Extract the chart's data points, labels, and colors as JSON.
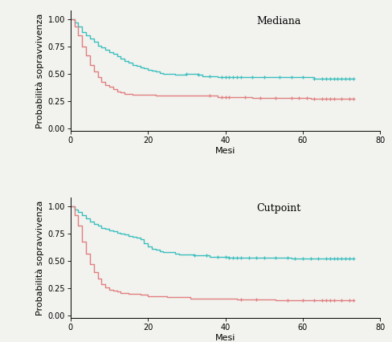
{
  "teal_color": "#3bbfbf",
  "red_color": "#e08080",
  "background_color": "#f2f2ee",
  "ylabel": "Probabilità sopravvivenza",
  "xlabel": "Mesi",
  "xlim": [
    0,
    80
  ],
  "ylim": [
    -0.02,
    1.08
  ],
  "yticks": [
    0.0,
    0.25,
    0.5,
    0.75,
    1.0
  ],
  "xticks": [
    0,
    20,
    40,
    60,
    80
  ],
  "panel1_label": "Mediana",
  "panel1_teal_steps": [
    [
      0,
      1.0
    ],
    [
      1,
      0.97
    ],
    [
      2,
      0.93
    ],
    [
      3,
      0.88
    ],
    [
      4,
      0.85
    ],
    [
      5,
      0.82
    ],
    [
      6,
      0.79
    ],
    [
      7,
      0.76
    ],
    [
      8,
      0.74
    ],
    [
      9,
      0.72
    ],
    [
      10,
      0.7
    ],
    [
      11,
      0.68
    ],
    [
      12,
      0.66
    ],
    [
      13,
      0.64
    ],
    [
      14,
      0.62
    ],
    [
      15,
      0.6
    ],
    [
      16,
      0.58
    ],
    [
      17,
      0.57
    ],
    [
      18,
      0.56
    ],
    [
      19,
      0.55
    ],
    [
      20,
      0.54
    ],
    [
      21,
      0.53
    ],
    [
      22,
      0.52
    ],
    [
      23,
      0.51
    ],
    [
      24,
      0.5
    ],
    [
      25,
      0.5
    ],
    [
      26,
      0.5
    ],
    [
      27,
      0.49
    ],
    [
      28,
      0.49
    ],
    [
      29,
      0.49
    ],
    [
      30,
      0.5
    ],
    [
      31,
      0.5
    ],
    [
      32,
      0.5
    ],
    [
      33,
      0.49
    ],
    [
      34,
      0.48
    ],
    [
      35,
      0.48
    ],
    [
      36,
      0.48
    ],
    [
      37,
      0.48
    ],
    [
      38,
      0.47
    ],
    [
      39,
      0.47
    ],
    [
      40,
      0.47
    ],
    [
      41,
      0.47
    ],
    [
      42,
      0.47
    ],
    [
      43,
      0.47
    ],
    [
      44,
      0.47
    ],
    [
      45,
      0.47
    ],
    [
      46,
      0.47
    ],
    [
      47,
      0.47
    ],
    [
      48,
      0.47
    ],
    [
      49,
      0.47
    ],
    [
      50,
      0.47
    ],
    [
      51,
      0.47
    ],
    [
      52,
      0.47
    ],
    [
      53,
      0.47
    ],
    [
      54,
      0.47
    ],
    [
      55,
      0.47
    ],
    [
      56,
      0.47
    ],
    [
      57,
      0.47
    ],
    [
      58,
      0.47
    ],
    [
      59,
      0.47
    ],
    [
      60,
      0.47
    ],
    [
      61,
      0.47
    ],
    [
      62,
      0.47
    ],
    [
      63,
      0.46
    ],
    [
      64,
      0.46
    ],
    [
      65,
      0.46
    ],
    [
      66,
      0.46
    ],
    [
      67,
      0.46
    ],
    [
      68,
      0.46
    ],
    [
      69,
      0.46
    ],
    [
      70,
      0.46
    ],
    [
      71,
      0.46
    ],
    [
      72,
      0.46
    ],
    [
      73,
      0.46
    ]
  ],
  "panel1_red_steps": [
    [
      0,
      1.0
    ],
    [
      1,
      0.93
    ],
    [
      2,
      0.85
    ],
    [
      3,
      0.75
    ],
    [
      4,
      0.67
    ],
    [
      5,
      0.58
    ],
    [
      6,
      0.52
    ],
    [
      7,
      0.47
    ],
    [
      8,
      0.43
    ],
    [
      9,
      0.4
    ],
    [
      10,
      0.38
    ],
    [
      11,
      0.36
    ],
    [
      12,
      0.34
    ],
    [
      13,
      0.33
    ],
    [
      14,
      0.32
    ],
    [
      15,
      0.32
    ],
    [
      16,
      0.31
    ],
    [
      17,
      0.31
    ],
    [
      18,
      0.31
    ],
    [
      19,
      0.31
    ],
    [
      20,
      0.31
    ],
    [
      21,
      0.31
    ],
    [
      22,
      0.3
    ],
    [
      23,
      0.3
    ],
    [
      24,
      0.3
    ],
    [
      25,
      0.3
    ],
    [
      26,
      0.3
    ],
    [
      27,
      0.3
    ],
    [
      28,
      0.3
    ],
    [
      29,
      0.3
    ],
    [
      30,
      0.3
    ],
    [
      31,
      0.3
    ],
    [
      32,
      0.3
    ],
    [
      33,
      0.3
    ],
    [
      34,
      0.3
    ],
    [
      35,
      0.3
    ],
    [
      36,
      0.3
    ],
    [
      37,
      0.3
    ],
    [
      38,
      0.29
    ],
    [
      39,
      0.29
    ],
    [
      40,
      0.29
    ],
    [
      41,
      0.29
    ],
    [
      42,
      0.29
    ],
    [
      43,
      0.29
    ],
    [
      44,
      0.29
    ],
    [
      45,
      0.29
    ],
    [
      46,
      0.29
    ],
    [
      47,
      0.28
    ],
    [
      48,
      0.28
    ],
    [
      49,
      0.28
    ],
    [
      50,
      0.28
    ],
    [
      51,
      0.28
    ],
    [
      52,
      0.28
    ],
    [
      53,
      0.28
    ],
    [
      54,
      0.28
    ],
    [
      55,
      0.28
    ],
    [
      56,
      0.28
    ],
    [
      57,
      0.28
    ],
    [
      58,
      0.28
    ],
    [
      59,
      0.28
    ],
    [
      60,
      0.28
    ],
    [
      61,
      0.28
    ],
    [
      62,
      0.27
    ],
    [
      63,
      0.27
    ],
    [
      64,
      0.27
    ],
    [
      65,
      0.27
    ],
    [
      66,
      0.27
    ],
    [
      67,
      0.27
    ],
    [
      68,
      0.27
    ],
    [
      69,
      0.27
    ],
    [
      70,
      0.27
    ],
    [
      71,
      0.27
    ],
    [
      72,
      0.27
    ],
    [
      73,
      0.27
    ]
  ],
  "panel1_teal_censors": [
    30,
    33,
    36,
    39,
    40,
    41,
    42,
    43,
    44,
    47,
    50,
    54,
    57,
    60,
    63,
    65,
    66,
    67,
    68,
    69,
    70,
    71,
    72,
    73
  ],
  "panel1_red_censors": [
    36,
    39,
    40,
    41,
    45,
    49,
    53,
    57,
    59,
    61,
    63,
    65,
    66,
    67,
    68,
    70,
    72,
    73
  ],
  "panel2_label": "Cutpoint",
  "panel2_teal_steps": [
    [
      0,
      1.0
    ],
    [
      1,
      0.97
    ],
    [
      2,
      0.95
    ],
    [
      3,
      0.92
    ],
    [
      4,
      0.89
    ],
    [
      5,
      0.86
    ],
    [
      6,
      0.84
    ],
    [
      7,
      0.82
    ],
    [
      8,
      0.8
    ],
    [
      9,
      0.79
    ],
    [
      10,
      0.78
    ],
    [
      11,
      0.77
    ],
    [
      12,
      0.76
    ],
    [
      13,
      0.75
    ],
    [
      14,
      0.74
    ],
    [
      15,
      0.73
    ],
    [
      16,
      0.72
    ],
    [
      17,
      0.71
    ],
    [
      18,
      0.7
    ],
    [
      19,
      0.66
    ],
    [
      20,
      0.63
    ],
    [
      21,
      0.61
    ],
    [
      22,
      0.6
    ],
    [
      23,
      0.59
    ],
    [
      24,
      0.58
    ],
    [
      25,
      0.58
    ],
    [
      26,
      0.58
    ],
    [
      27,
      0.57
    ],
    [
      28,
      0.56
    ],
    [
      29,
      0.56
    ],
    [
      30,
      0.56
    ],
    [
      31,
      0.56
    ],
    [
      32,
      0.55
    ],
    [
      33,
      0.55
    ],
    [
      34,
      0.55
    ],
    [
      35,
      0.55
    ],
    [
      36,
      0.54
    ],
    [
      37,
      0.54
    ],
    [
      38,
      0.54
    ],
    [
      39,
      0.54
    ],
    [
      40,
      0.54
    ],
    [
      41,
      0.53
    ],
    [
      42,
      0.53
    ],
    [
      43,
      0.53
    ],
    [
      44,
      0.53
    ],
    [
      45,
      0.53
    ],
    [
      46,
      0.53
    ],
    [
      47,
      0.53
    ],
    [
      48,
      0.53
    ],
    [
      49,
      0.53
    ],
    [
      50,
      0.53
    ],
    [
      51,
      0.53
    ],
    [
      52,
      0.53
    ],
    [
      53,
      0.53
    ],
    [
      54,
      0.53
    ],
    [
      55,
      0.53
    ],
    [
      56,
      0.53
    ],
    [
      57,
      0.52
    ],
    [
      58,
      0.52
    ],
    [
      59,
      0.52
    ],
    [
      60,
      0.52
    ],
    [
      61,
      0.52
    ],
    [
      62,
      0.52
    ],
    [
      63,
      0.52
    ],
    [
      64,
      0.52
    ],
    [
      65,
      0.52
    ],
    [
      66,
      0.52
    ],
    [
      67,
      0.52
    ],
    [
      68,
      0.52
    ],
    [
      69,
      0.52
    ],
    [
      70,
      0.52
    ],
    [
      71,
      0.52
    ],
    [
      72,
      0.52
    ],
    [
      73,
      0.52
    ]
  ],
  "panel2_red_steps": [
    [
      0,
      1.0
    ],
    [
      1,
      0.92
    ],
    [
      2,
      0.82
    ],
    [
      3,
      0.68
    ],
    [
      4,
      0.57
    ],
    [
      5,
      0.47
    ],
    [
      6,
      0.4
    ],
    [
      7,
      0.34
    ],
    [
      8,
      0.29
    ],
    [
      9,
      0.26
    ],
    [
      10,
      0.24
    ],
    [
      11,
      0.23
    ],
    [
      12,
      0.22
    ],
    [
      13,
      0.21
    ],
    [
      14,
      0.21
    ],
    [
      15,
      0.2
    ],
    [
      16,
      0.2
    ],
    [
      17,
      0.2
    ],
    [
      18,
      0.19
    ],
    [
      19,
      0.19
    ],
    [
      20,
      0.18
    ],
    [
      21,
      0.18
    ],
    [
      22,
      0.18
    ],
    [
      23,
      0.18
    ],
    [
      24,
      0.18
    ],
    [
      25,
      0.17
    ],
    [
      26,
      0.17
    ],
    [
      27,
      0.17
    ],
    [
      28,
      0.17
    ],
    [
      29,
      0.17
    ],
    [
      30,
      0.17
    ],
    [
      31,
      0.16
    ],
    [
      32,
      0.16
    ],
    [
      33,
      0.16
    ],
    [
      34,
      0.16
    ],
    [
      35,
      0.16
    ],
    [
      36,
      0.16
    ],
    [
      37,
      0.16
    ],
    [
      38,
      0.16
    ],
    [
      39,
      0.16
    ],
    [
      40,
      0.16
    ],
    [
      41,
      0.16
    ],
    [
      42,
      0.16
    ],
    [
      43,
      0.15
    ],
    [
      44,
      0.15
    ],
    [
      45,
      0.15
    ],
    [
      46,
      0.15
    ],
    [
      47,
      0.15
    ],
    [
      48,
      0.15
    ],
    [
      49,
      0.15
    ],
    [
      50,
      0.15
    ],
    [
      51,
      0.15
    ],
    [
      52,
      0.15
    ],
    [
      53,
      0.14
    ],
    [
      54,
      0.14
    ],
    [
      55,
      0.14
    ],
    [
      56,
      0.14
    ],
    [
      57,
      0.14
    ],
    [
      58,
      0.14
    ],
    [
      59,
      0.14
    ],
    [
      60,
      0.14
    ],
    [
      61,
      0.14
    ],
    [
      62,
      0.14
    ],
    [
      63,
      0.14
    ],
    [
      64,
      0.14
    ],
    [
      65,
      0.14
    ],
    [
      66,
      0.14
    ],
    [
      67,
      0.14
    ],
    [
      68,
      0.14
    ],
    [
      69,
      0.14
    ],
    [
      70,
      0.14
    ],
    [
      71,
      0.14
    ],
    [
      72,
      0.14
    ],
    [
      73,
      0.14
    ]
  ],
  "panel2_teal_censors": [
    32,
    35,
    38,
    40,
    41,
    42,
    43,
    44,
    46,
    48,
    50,
    53,
    56,
    58,
    60,
    62,
    64,
    66,
    67,
    68,
    69,
    70,
    71,
    72,
    73
  ],
  "panel2_red_censors": [
    44,
    48,
    56,
    60,
    63,
    65,
    66,
    67,
    68,
    70,
    72,
    73
  ],
  "tick_fontsize": 7,
  "label_fontsize": 8,
  "panel_label_fontsize": 9,
  "linewidth": 1.0,
  "markersize": 3.5,
  "markeredgewidth": 0.9
}
